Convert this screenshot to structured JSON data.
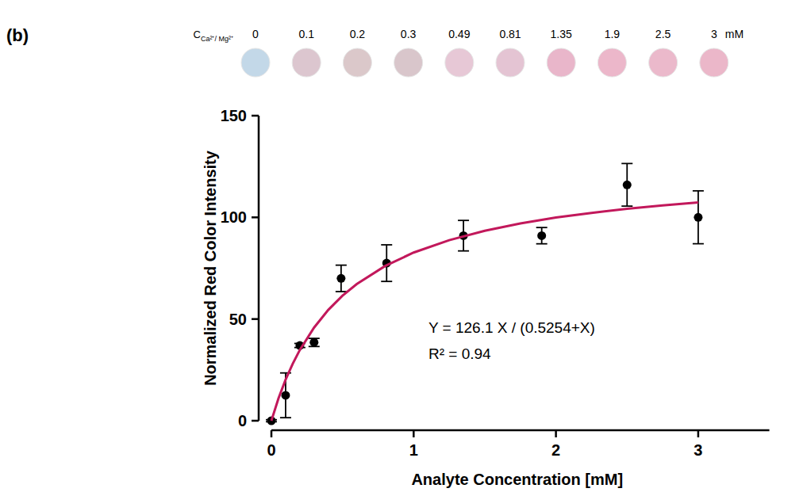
{
  "chart_data": {
    "type": "scatter",
    "panel_label": "(b)",
    "x_label": "Analyte Concentration [mM]",
    "y_label": "Normalized Red Color Intensity",
    "xlim": [
      0,
      3.5
    ],
    "xticks": [
      0,
      1,
      2,
      3
    ],
    "ylim": [
      0,
      150
    ],
    "yticks": [
      0,
      50,
      100,
      150
    ],
    "annotations": [
      "Y = 126.1 X / (0.5254+X)",
      "R² = 0.94"
    ],
    "series": [
      {
        "type": "scatter",
        "color": "#000000",
        "marker": "circle",
        "x": [
          0,
          0.1,
          0.2,
          0.3,
          0.49,
          0.81,
          1.35,
          1.9,
          2.5,
          3
        ],
        "values": [
          0,
          12.5,
          37,
          38.5,
          70,
          77.5,
          91,
          91,
          116,
          100
        ],
        "errors": [
          0.5,
          11,
          1,
          2,
          6.5,
          9,
          7.5,
          4,
          10.5,
          13
        ]
      },
      {
        "type": "line",
        "color": "#c2185b",
        "line_style": "solid",
        "x": [
          0,
          0.05,
          0.1,
          0.15,
          0.2,
          0.3,
          0.4,
          0.5,
          0.6,
          0.8,
          1,
          1.25,
          1.5,
          1.75,
          2,
          2.25,
          2.5,
          2.75,
          3
        ],
        "values": [
          0,
          11,
          20.2,
          28,
          34.8,
          45.8,
          54.5,
          61.5,
          67.2,
          76.1,
          82.7,
          88.8,
          93.4,
          97,
          99.9,
          102.2,
          104.2,
          105.9,
          107.3
        ]
      }
    ],
    "swatches": {
      "label": "C",
      "label_sub": "Ca²⁺/ Mg²⁺",
      "unit": "mM",
      "concentrations": [
        0,
        0.1,
        0.2,
        0.3,
        0.49,
        0.81,
        1.35,
        1.9,
        2.5,
        3
      ],
      "colors": [
        "#c3d8e8",
        "#dcc6cf",
        "#dbc8ca",
        "#d9c6cb",
        "#e7c8d6",
        "#e4c4d3",
        "#e9b6ca",
        "#ecb7ca",
        "#ebb9cb",
        "#ebb7c9"
      ]
    }
  }
}
